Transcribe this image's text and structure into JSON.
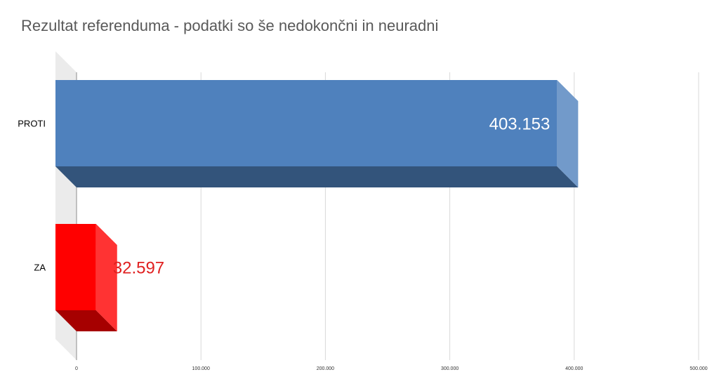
{
  "chart_data": {
    "type": "bar",
    "orientation": "horizontal",
    "style": "3d",
    "title": "Rezultat referenduma - podatki so še nedokončni in neuradni",
    "categories": [
      "PROTI",
      "ZA"
    ],
    "values": [
      403153,
      32597
    ],
    "value_labels": [
      "403.153",
      "32.597"
    ],
    "colors": [
      "#4F81BD",
      "#FF0000"
    ],
    "label_colors": [
      "#ffffff",
      "#E02020"
    ],
    "xlim": [
      0,
      500000
    ],
    "xticks": [
      0,
      100000,
      200000,
      300000,
      400000,
      500000
    ],
    "xtick_labels": [
      "0",
      "100.000",
      "200.000",
      "300.000",
      "400.000",
      "500.000"
    ],
    "grid": true,
    "legend": "none"
  }
}
